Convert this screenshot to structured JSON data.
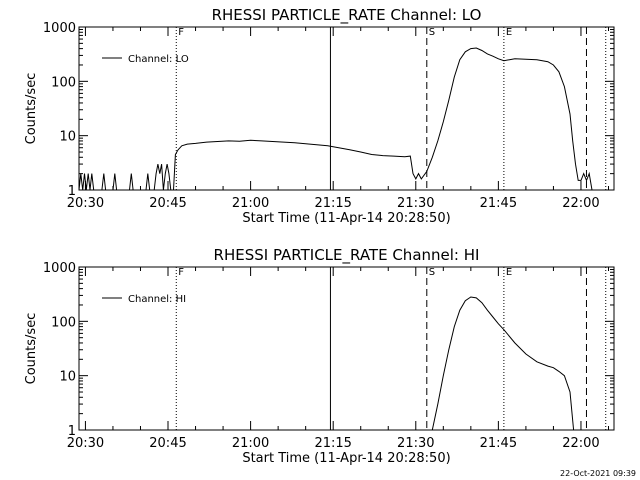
{
  "footer": {
    "date_stamp": "22-Oct-2021 09:39"
  },
  "chart_data": [
    {
      "type": "line",
      "title": "RHESSI PARTICLE_RATE Channel: LO",
      "xlabel": "Start Time (11-Apr-14 20:28:50)",
      "ylabel": "Counts/sec",
      "y_scale": "log",
      "xlim": [
        "20:28:50",
        "22:06:00"
      ],
      "ylim": [
        1,
        1000
      ],
      "x_ticks": [
        "20:30",
        "20:45",
        "21:00",
        "21:15",
        "21:30",
        "21:45",
        "22:00"
      ],
      "y_ticks": [
        "1",
        "10",
        "100",
        "1000"
      ],
      "legend": {
        "position": "top-left",
        "entries": [
          "Channel: LO"
        ]
      },
      "markers": [
        {
          "time": "20:46:30",
          "label": "F",
          "style": "dotted"
        },
        {
          "time": "21:14:30",
          "label": "",
          "style": "solid"
        },
        {
          "time": "21:32:00",
          "label": "S",
          "style": "dashed"
        },
        {
          "time": "21:46:00",
          "label": "E",
          "style": "dotted"
        },
        {
          "time": "22:01:00",
          "label": "",
          "style": "dashed"
        },
        {
          "time": "22:04:30",
          "label": "",
          "style": "dotted"
        }
      ],
      "series": [
        {
          "name": "Channel: LO",
          "points": [
            [
              "20:28:50",
              1
            ],
            [
              "20:29:10",
              2
            ],
            [
              "20:29:30",
              1
            ],
            [
              "20:29:50",
              2
            ],
            [
              "20:30:10",
              1
            ],
            [
              "20:30:30",
              2
            ],
            [
              "20:30:50",
              1
            ],
            [
              "20:31:10",
              2
            ],
            [
              "20:31:30",
              1
            ],
            [
              "20:31:50",
              1
            ],
            [
              "20:33:00",
              1
            ],
            [
              "20:33:20",
              2
            ],
            [
              "20:33:40",
              1
            ],
            [
              "20:35:00",
              1
            ],
            [
              "20:35:20",
              2
            ],
            [
              "20:35:40",
              1
            ],
            [
              "20:38:00",
              1
            ],
            [
              "20:38:20",
              2
            ],
            [
              "20:38:40",
              1
            ],
            [
              "20:41:00",
              1
            ],
            [
              "20:41:20",
              2
            ],
            [
              "20:41:40",
              1
            ],
            [
              "20:42:30",
              1
            ],
            [
              "20:42:50",
              2
            ],
            [
              "20:43:10",
              3
            ],
            [
              "20:43:30",
              2
            ],
            [
              "20:43:50",
              3
            ],
            [
              "20:44:10",
              1
            ],
            [
              "20:44:30",
              2
            ],
            [
              "20:44:50",
              3
            ],
            [
              "20:45:10",
              2
            ],
            [
              "20:45:30",
              1
            ],
            [
              "20:46:00",
              1
            ],
            [
              "20:46:20",
              4.5
            ],
            [
              "20:46:50",
              5.5
            ],
            [
              "20:47:30",
              6.5
            ],
            [
              "20:48:30",
              7
            ],
            [
              "20:50:00",
              7.2
            ],
            [
              "20:52:00",
              7.6
            ],
            [
              "20:54:00",
              7.8
            ],
            [
              "20:56:00",
              8
            ],
            [
              "20:58:00",
              7.9
            ],
            [
              "21:00:00",
              8.2
            ],
            [
              "21:02:00",
              8
            ],
            [
              "21:04:00",
              7.8
            ],
            [
              "21:06:00",
              7.6
            ],
            [
              "21:08:00",
              7.4
            ],
            [
              "21:10:00",
              7.1
            ],
            [
              "21:12:00",
              6.8
            ],
            [
              "21:14:00",
              6.5
            ],
            [
              "21:16:00",
              6
            ],
            [
              "21:18:00",
              5.5
            ],
            [
              "21:20:00",
              5
            ],
            [
              "21:22:00",
              4.5
            ],
            [
              "21:24:00",
              4.3
            ],
            [
              "21:26:00",
              4.2
            ],
            [
              "21:28:00",
              4.1
            ],
            [
              "21:29:00",
              4.2
            ],
            [
              "21:29:30",
              2
            ],
            [
              "21:30:00",
              1.6
            ],
            [
              "21:30:30",
              2
            ],
            [
              "21:31:00",
              1.6
            ],
            [
              "21:32:00",
              2.2
            ],
            [
              "21:33:00",
              4
            ],
            [
              "21:34:00",
              8
            ],
            [
              "21:35:00",
              18
            ],
            [
              "21:36:00",
              45
            ],
            [
              "21:37:00",
              120
            ],
            [
              "21:38:00",
              250
            ],
            [
              "21:39:00",
              350
            ],
            [
              "21:40:00",
              400
            ],
            [
              "21:41:00",
              410
            ],
            [
              "21:42:00",
              370
            ],
            [
              "21:43:00",
              320
            ],
            [
              "21:44:00",
              290
            ],
            [
              "21:45:00",
              260
            ],
            [
              "21:46:00",
              240
            ],
            [
              "21:47:00",
              250
            ],
            [
              "21:48:00",
              260
            ],
            [
              "21:50:00",
              255
            ],
            [
              "21:52:00",
              250
            ],
            [
              "21:54:00",
              230
            ],
            [
              "21:55:00",
              200
            ],
            [
              "21:56:00",
              150
            ],
            [
              "21:57:00",
              80
            ],
            [
              "21:58:00",
              25
            ],
            [
              "21:58:30",
              8
            ],
            [
              "21:59:00",
              3
            ],
            [
              "21:59:30",
              1.5
            ],
            [
              "22:00:00",
              1.5
            ],
            [
              "22:00:30",
              2
            ],
            [
              "22:01:00",
              1.5
            ],
            [
              "22:01:30",
              2
            ],
            [
              "22:02:00",
              1
            ]
          ]
        }
      ]
    },
    {
      "type": "line",
      "title": "RHESSI PARTICLE_RATE Channel: HI",
      "xlabel": "Start Time (11-Apr-14 20:28:50)",
      "ylabel": "Counts/sec",
      "y_scale": "log",
      "xlim": [
        "20:28:50",
        "22:06:00"
      ],
      "ylim": [
        1,
        1000
      ],
      "x_ticks": [
        "20:30",
        "20:45",
        "21:00",
        "21:15",
        "21:30",
        "21:45",
        "22:00"
      ],
      "y_ticks": [
        "1",
        "10",
        "100",
        "1000"
      ],
      "legend": {
        "position": "top-left",
        "entries": [
          "Channel: HI"
        ]
      },
      "markers": [
        {
          "time": "20:46:30",
          "label": "F",
          "style": "dotted"
        },
        {
          "time": "21:14:30",
          "label": "",
          "style": "solid"
        },
        {
          "time": "21:32:00",
          "label": "S",
          "style": "dashed"
        },
        {
          "time": "21:46:00",
          "label": "E",
          "style": "dotted"
        },
        {
          "time": "22:01:00",
          "label": "",
          "style": "dashed"
        },
        {
          "time": "22:04:30",
          "label": "",
          "style": "dotted"
        }
      ],
      "series": [
        {
          "name": "Channel: HI",
          "points": [
            [
              "21:33:00",
              1
            ],
            [
              "21:34:00",
              3
            ],
            [
              "21:35:00",
              10
            ],
            [
              "21:36:00",
              30
            ],
            [
              "21:37:00",
              80
            ],
            [
              "21:38:00",
              160
            ],
            [
              "21:39:00",
              240
            ],
            [
              "21:40:00",
              280
            ],
            [
              "21:41:00",
              270
            ],
            [
              "21:42:00",
              220
            ],
            [
              "21:43:00",
              160
            ],
            [
              "21:44:00",
              120
            ],
            [
              "21:45:00",
              90
            ],
            [
              "21:46:00",
              70
            ],
            [
              "21:48:00",
              40
            ],
            [
              "21:50:00",
              25
            ],
            [
              "21:52:00",
              18
            ],
            [
              "21:54:00",
              15
            ],
            [
              "21:55:00",
              14
            ],
            [
              "21:56:00",
              12
            ],
            [
              "21:57:00",
              10
            ],
            [
              "21:58:00",
              5
            ],
            [
              "21:58:40",
              1
            ]
          ]
        }
      ]
    }
  ]
}
